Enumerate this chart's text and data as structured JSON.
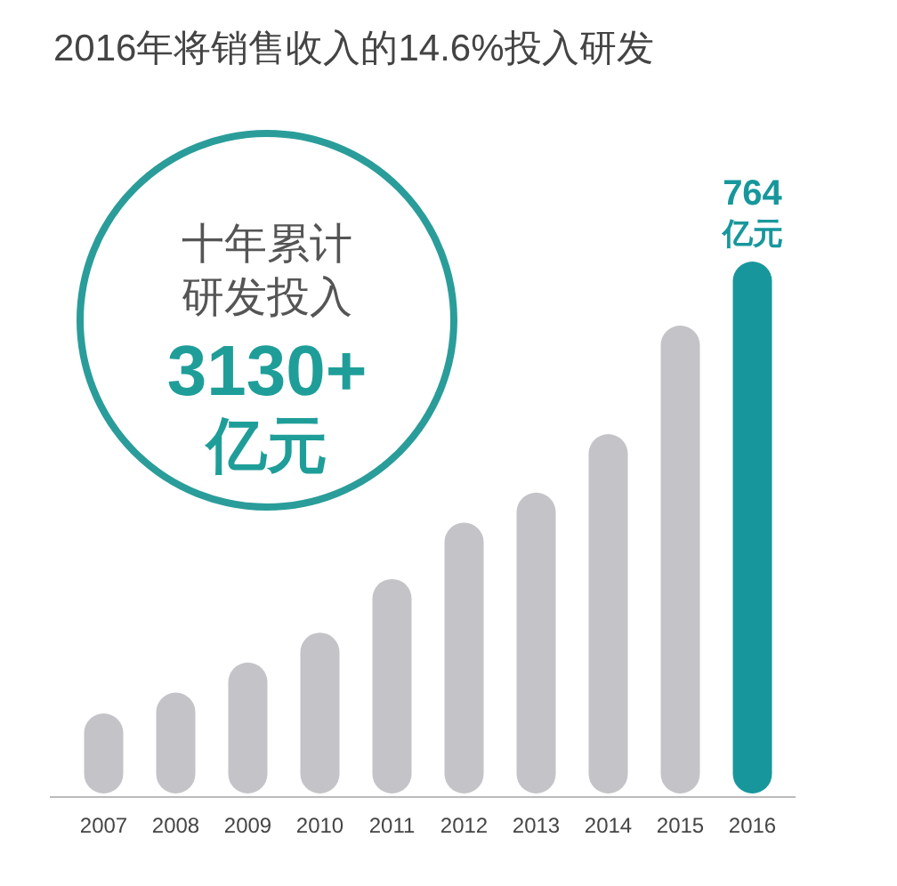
{
  "chart_data": {
    "type": "bar",
    "title": "2016年将销售收入的14.6%投入研发",
    "categories": [
      "2007",
      "2008",
      "2009",
      "2010",
      "2011",
      "2012",
      "2013",
      "2014",
      "2015",
      "2016"
    ],
    "values": [
      115,
      145,
      188,
      231,
      308,
      389,
      432,
      516,
      672,
      764
    ],
    "colors": [
      "#c4c3c8",
      "#c4c3c8",
      "#c4c3c8",
      "#c4c3c8",
      "#c4c3c8",
      "#c4c3c8",
      "#c4c3c8",
      "#c4c3c8",
      "#c4c3c8",
      "#17979c"
    ],
    "value_labels": [
      null,
      null,
      null,
      null,
      null,
      null,
      null,
      null,
      null,
      "764\n亿元"
    ],
    "annotations": [
      "十年累计",
      "研发投入",
      "3130+",
      "亿元"
    ]
  }
}
